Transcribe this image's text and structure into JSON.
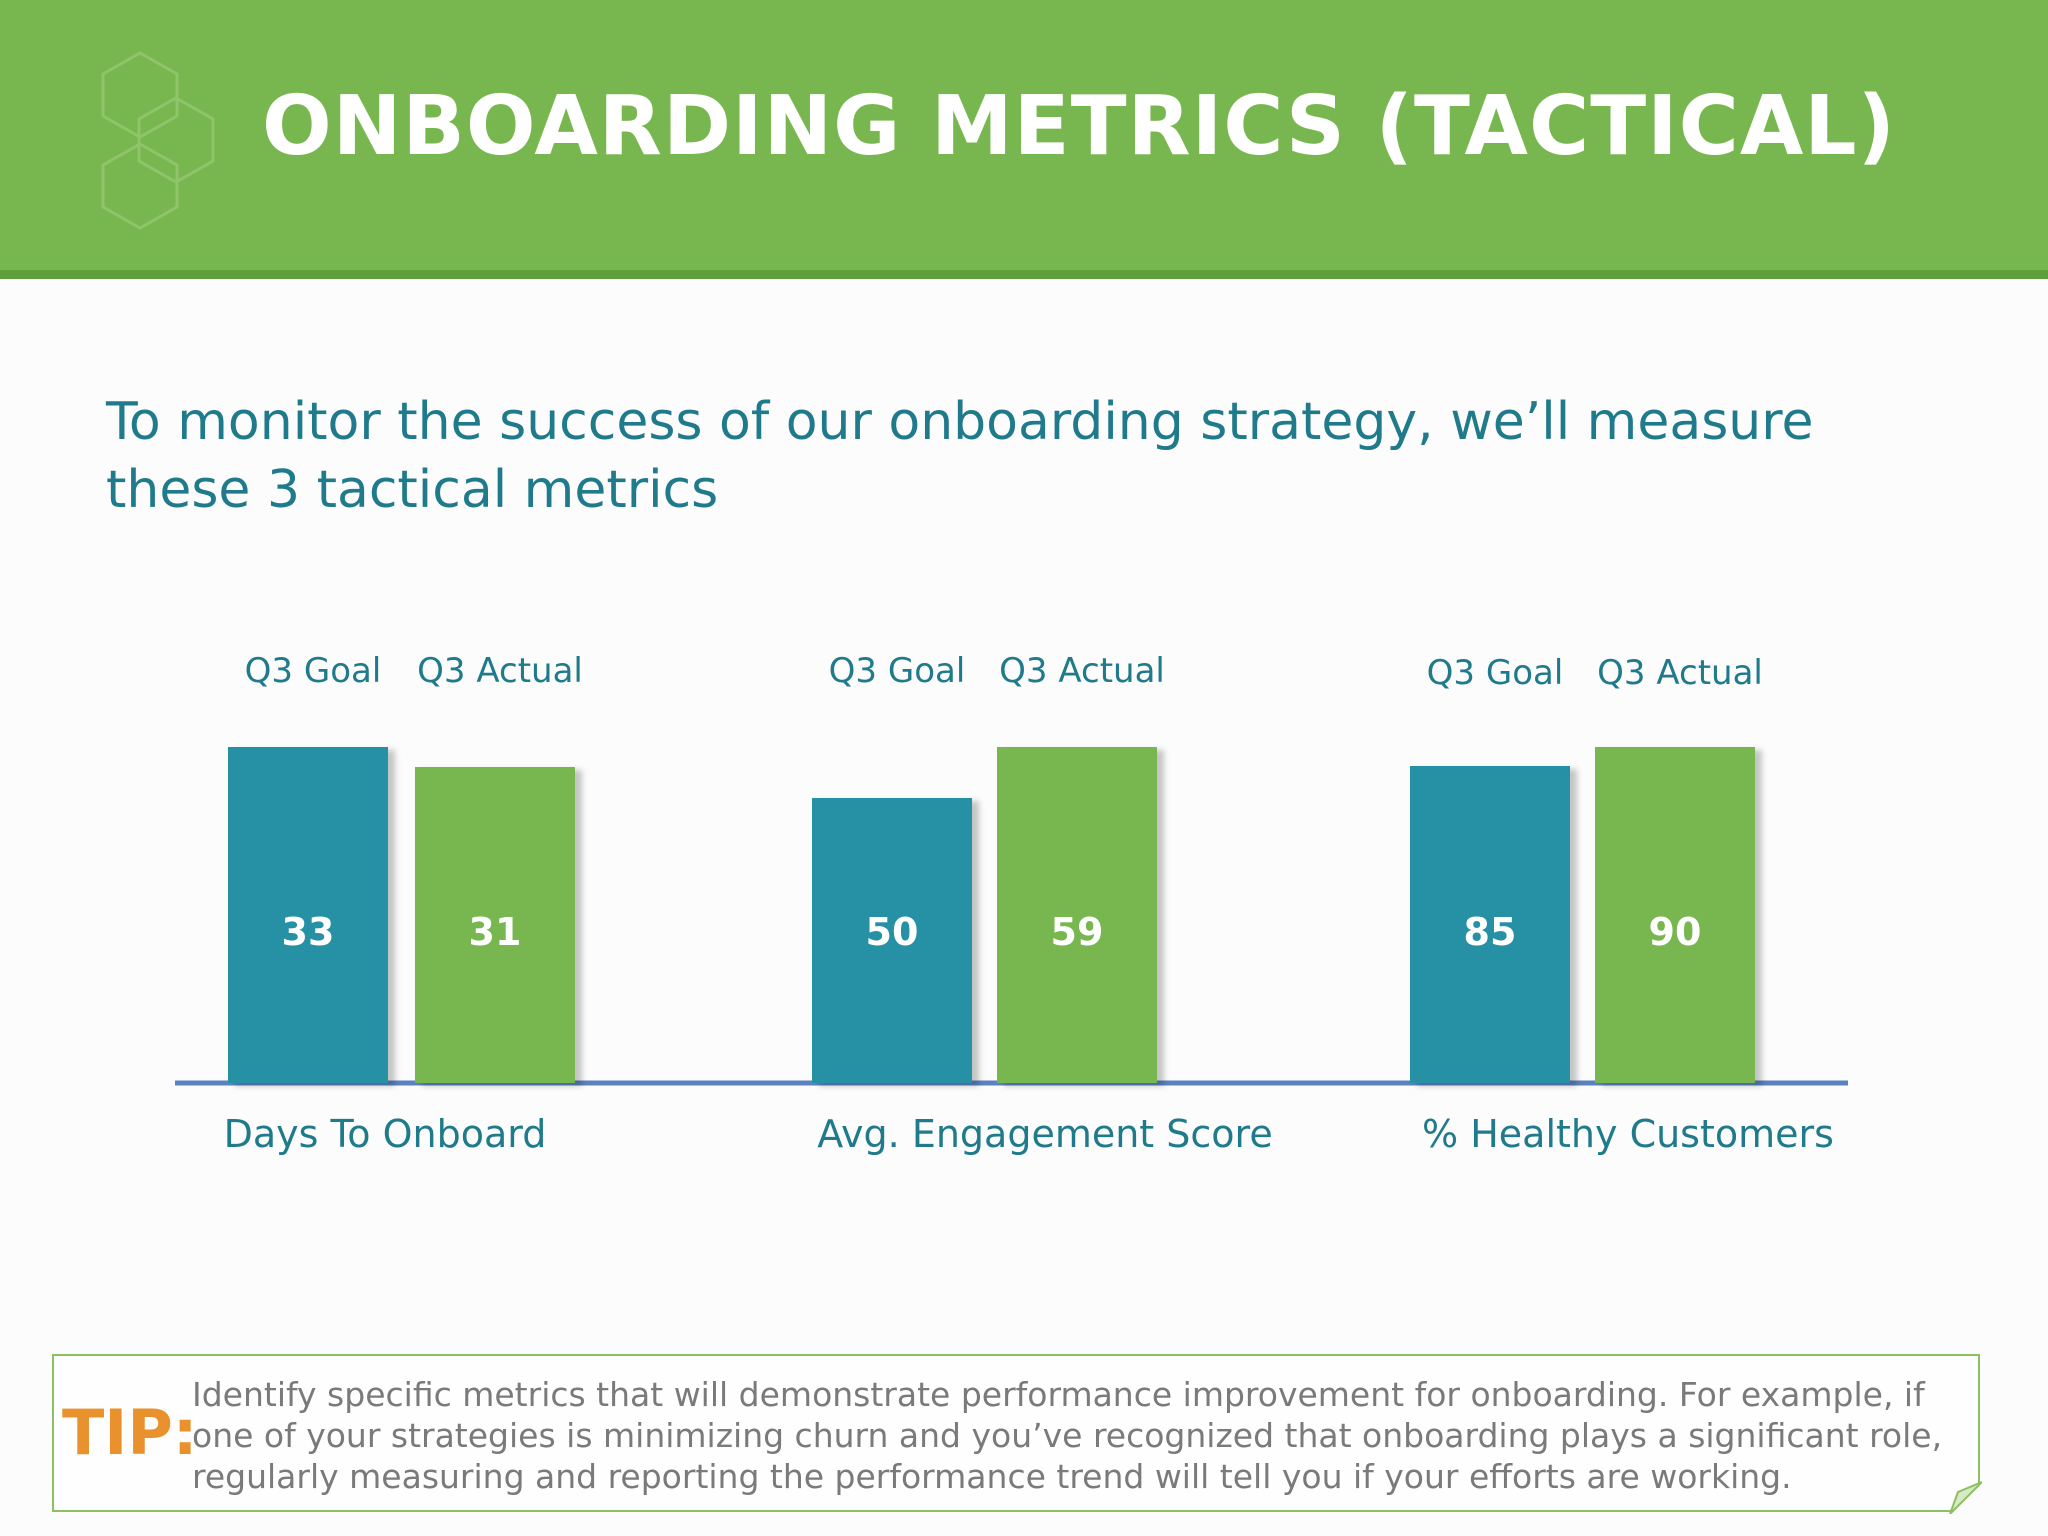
{
  "header": {
    "title": "ONBOARDING METRICS (TACTICAL)",
    "logo_icon": "hexagon-cluster-icon"
  },
  "intro": {
    "text": "To monitor the success of our onboarding strategy, we’ll measure these 3 tactical metrics"
  },
  "colors": {
    "header_green": "#78b74f",
    "goal_teal": "#2890a4",
    "actual_green": "#78b74f",
    "text_teal": "#1f7a8c",
    "baseline_blue": "#5a82c0",
    "tip_orange": "#e8912d"
  },
  "chart_data": {
    "type": "bar",
    "categories": [
      "Days To Onboard",
      "Avg. Engagement Score",
      "% Healthy Customers"
    ],
    "series": [
      {
        "name": "Q3 Goal",
        "values": [
          33,
          50,
          85
        ]
      },
      {
        "name": "Q3 Actual",
        "values": [
          31,
          59,
          90
        ]
      }
    ],
    "data_labels": true,
    "per_category_scale": true,
    "gridlines": false,
    "legend": "above each group"
  },
  "tip": {
    "label": "TIP:",
    "text": "Identify specific metrics that will demonstrate performance improvement for onboarding. For example, if one of your strategies is minimizing churn and you’ve recognized that onboarding plays a significant role, regularly measuring and reporting the performance trend will tell you if your efforts are working."
  }
}
